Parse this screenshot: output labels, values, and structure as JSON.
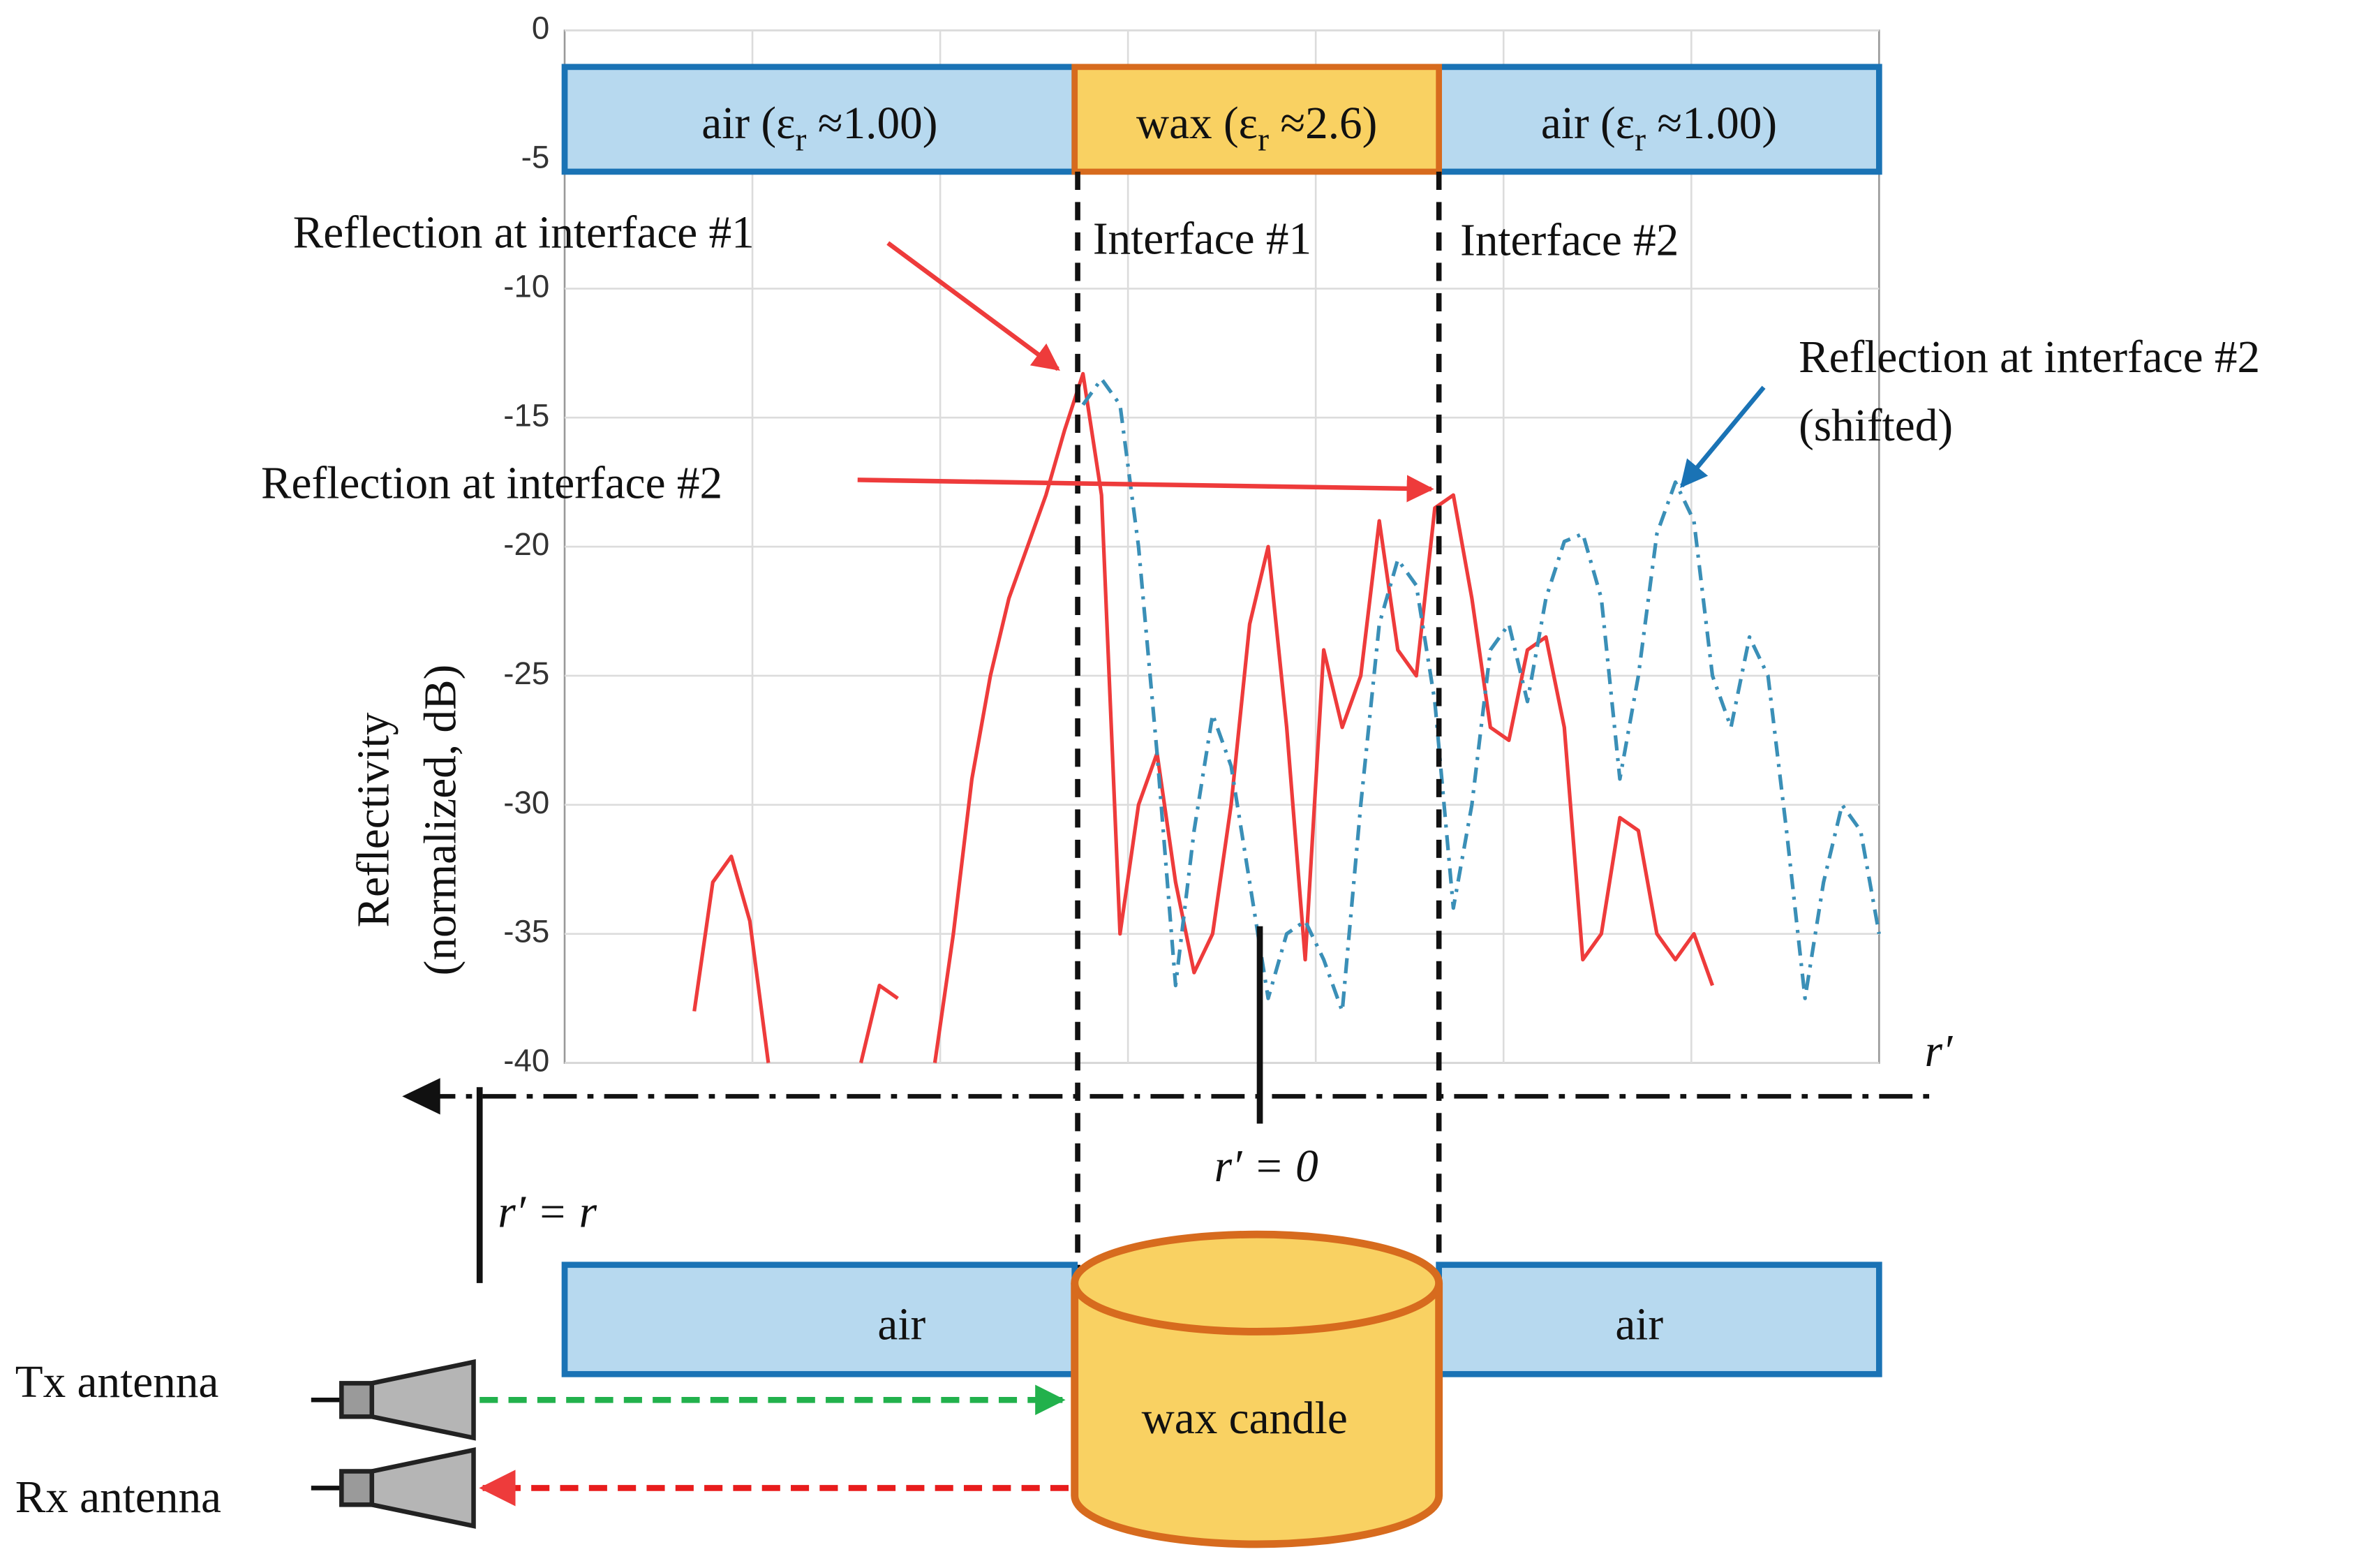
{
  "chart_data": {
    "type": "line",
    "ylabel": [
      "Reflectivity",
      "(normalized, dB)"
    ],
    "categories": [
      null,
      null,
      null,
      null,
      null,
      null,
      null,
      null,
      null,
      null,
      null,
      null,
      null,
      null,
      null,
      null,
      null,
      null,
      null,
      null,
      null,
      null,
      null,
      null,
      null,
      null,
      null,
      null,
      null,
      null,
      null,
      null,
      null,
      null,
      null,
      null,
      null,
      null,
      null,
      null,
      null,
      null,
      null,
      null,
      null,
      null,
      null,
      null,
      null,
      null,
      null,
      null,
      null,
      null,
      null,
      null,
      null,
      null,
      null,
      null,
      null,
      null,
      null,
      null,
      null,
      null,
      null,
      null,
      null,
      null,
      null,
      null
    ],
    "series": [
      {
        "color": "#ee3b3b",
        "linestyle": "solid",
        "values": [
          null,
          null,
          null,
          null,
          null,
          null,
          null,
          -38,
          -33,
          -32,
          -34.5,
          -40,
          null,
          null,
          null,
          null,
          -40,
          -37,
          -37.5,
          null,
          -40,
          -35,
          -29,
          -25,
          -22,
          -20,
          -18,
          -15.5,
          -13.3,
          -18,
          -35,
          -30,
          -28,
          -33,
          -36.5,
          -35,
          -30,
          -23,
          -20,
          -27,
          -36,
          -24,
          -27,
          -25,
          -19,
          -24,
          -25,
          -18.5,
          -18,
          -22,
          -27,
          -27.5,
          -24,
          -23.5,
          -27,
          -36,
          -35,
          -30.5,
          -31,
          -35,
          -36,
          -35,
          -37,
          null,
          null,
          null,
          null,
          null,
          null,
          null,
          null,
          null
        ]
      },
      {
        "color": "#3a8fb7",
        "linestyle": "dashdot",
        "values": [
          null,
          null,
          null,
          null,
          null,
          null,
          null,
          null,
          null,
          null,
          null,
          null,
          null,
          null,
          null,
          null,
          null,
          null,
          null,
          null,
          null,
          null,
          null,
          null,
          null,
          null,
          null,
          null,
          -14.5,
          -13.5,
          -14.5,
          -20,
          -28,
          -37,
          -31,
          -26.5,
          -28.5,
          -33,
          -37.5,
          -35,
          -34.5,
          -36,
          -38,
          -30,
          -23,
          -20.5,
          -21.5,
          -26,
          -34,
          -30,
          -24,
          -23,
          -26,
          -22,
          -19.8,
          -19.5,
          -22,
          -29,
          -25,
          -19.5,
          -17.5,
          -19,
          -25,
          -27,
          -23.5,
          -25,
          -31,
          -37.5,
          -33,
          -30,
          -31,
          -35
        ]
      }
    ],
    "ylim": [
      -40,
      0
    ],
    "yticks": [
      0,
      -5,
      -10,
      -15,
      -20,
      -25,
      -30,
      -35,
      -40
    ],
    "grid": true,
    "layers": [
      {
        "before": "air  (ε",
        "sub": "r",
        "after": " ≈1.00)"
      },
      {
        "before": "wax (ε",
        "sub": "r",
        "after": " ≈2.6)"
      },
      {
        "before": "air (ε",
        "sub": "r",
        "after": " ≈1.00)"
      }
    ],
    "annotations": {
      "reflection_1": "Reflection at interface #1",
      "reflection_2": "Reflection at interface #2",
      "reflection_2_shifted": [
        "Reflection at interface #2",
        "(shifted)"
      ],
      "interface_1": "Interface #1",
      "interface_2": "Interface #2",
      "axis_r": "r′",
      "r_zero": "r′ = 0",
      "r_r": "r′ = r"
    }
  },
  "setup": {
    "air_left": "air",
    "air_right": "air",
    "candle": "wax candle",
    "tx": "Tx antenna",
    "rx": "Rx antenna"
  }
}
